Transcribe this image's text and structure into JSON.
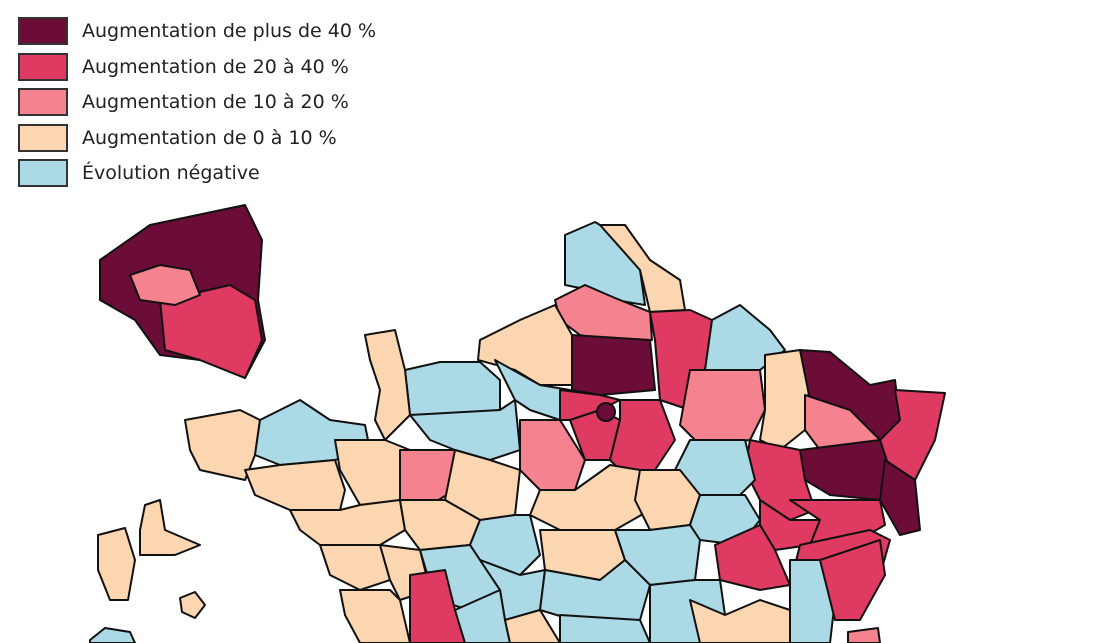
{
  "legend": {
    "items": [
      {
        "label": "Augmentation de plus de 40 %",
        "color": "#6b0d36"
      },
      {
        "label": "Augmentation de 20 à 40 %",
        "color": "#df3a62"
      },
      {
        "label": "Augmentation de 10 à 20 %",
        "color": "#f4828f"
      },
      {
        "label": "Augmentation de 0 à 10 %",
        "color": "#fbd6b1"
      },
      {
        "label": "Évolution négative",
        "color": "#acd9e6"
      }
    ]
  }
}
